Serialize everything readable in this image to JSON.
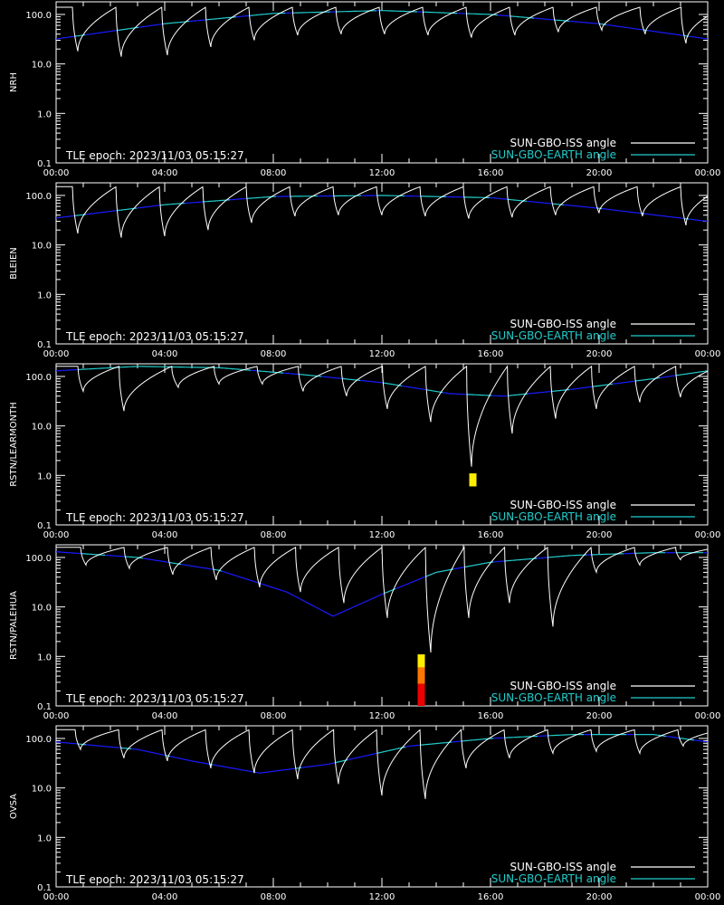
{
  "colors": {
    "background": "#000000",
    "axes": "#ffffff",
    "iss": "#ffffff",
    "earth_above": "#22cccc",
    "earth_below": "#1a1aff",
    "marker_yellow": "#ffee00",
    "marker_orange": "#ff7700",
    "marker_red": "#ee0000"
  },
  "x_tick_labels": [
    "00:00",
    "04:00",
    "08:00",
    "12:00",
    "16:00",
    "20:00",
    "00:00"
  ],
  "y_tick_labels": [
    "100.0",
    "10.0",
    "1.0",
    "0.1"
  ],
  "epoch_text": "TLE epoch: 2023/11/03 05:15:27",
  "legend": [
    {
      "label": "SUN-GBO-ISS angle",
      "color": "#ffffff"
    },
    {
      "label": "SUN-GBO-EARTH angle",
      "color": "#22cccc"
    }
  ],
  "chart_data": [
    {
      "type": "line",
      "ylabel": "NRH",
      "xlim": [
        0,
        24
      ],
      "ylim": [
        0.1,
        180
      ],
      "yscale": "log",
      "earth_curve": {
        "x": [
          0,
          4,
          8,
          12,
          16,
          20,
          24
        ],
        "y": [
          32,
          65,
          105,
          120,
          100,
          65,
          32
        ]
      },
      "iss_minima": [
        {
          "x": 0.8,
          "y": 18
        },
        {
          "x": 2.4,
          "y": 14
        },
        {
          "x": 4.1,
          "y": 15
        },
        {
          "x": 5.7,
          "y": 22
        },
        {
          "x": 7.3,
          "y": 30
        },
        {
          "x": 8.9,
          "y": 38
        },
        {
          "x": 10.5,
          "y": 40
        },
        {
          "x": 12.1,
          "y": 40
        },
        {
          "x": 13.7,
          "y": 38
        },
        {
          "x": 15.3,
          "y": 34
        },
        {
          "x": 16.9,
          "y": 38
        },
        {
          "x": 18.5,
          "y": 44
        },
        {
          "x": 20.1,
          "y": 48
        },
        {
          "x": 21.7,
          "y": 40
        },
        {
          "x": 23.2,
          "y": 26
        }
      ],
      "iss_peak": 140,
      "markers": []
    },
    {
      "type": "line",
      "ylabel": "BLEIEN",
      "xlim": [
        0,
        24
      ],
      "ylim": [
        0.1,
        180
      ],
      "yscale": "log",
      "earth_curve": {
        "x": [
          0,
          4,
          8,
          12,
          16,
          20,
          24
        ],
        "y": [
          35,
          65,
          95,
          100,
          90,
          55,
          30
        ]
      },
      "iss_minima": [
        {
          "x": 0.8,
          "y": 17
        },
        {
          "x": 2.4,
          "y": 14
        },
        {
          "x": 4.0,
          "y": 15
        },
        {
          "x": 5.6,
          "y": 20
        },
        {
          "x": 7.2,
          "y": 28
        },
        {
          "x": 8.8,
          "y": 38
        },
        {
          "x": 10.4,
          "y": 40
        },
        {
          "x": 12.0,
          "y": 40
        },
        {
          "x": 13.6,
          "y": 38
        },
        {
          "x": 15.2,
          "y": 34
        },
        {
          "x": 16.8,
          "y": 36
        },
        {
          "x": 18.4,
          "y": 40
        },
        {
          "x": 20.0,
          "y": 44
        },
        {
          "x": 21.6,
          "y": 38
        },
        {
          "x": 23.2,
          "y": 25
        }
      ],
      "iss_peak": 150,
      "markers": []
    },
    {
      "type": "line",
      "ylabel": "RSTN/LEARMONTH",
      "xlim": [
        0,
        24
      ],
      "ylim": [
        0.1,
        180
      ],
      "yscale": "log",
      "earth_curve": {
        "x": [
          0,
          3,
          6,
          9,
          12,
          14.5,
          16.5,
          19,
          22,
          24
        ],
        "y": [
          130,
          160,
          150,
          110,
          75,
          45,
          40,
          55,
          90,
          130
        ]
      },
      "iss_minima": [
        {
          "x": 1.0,
          "y": 50
        },
        {
          "x": 2.5,
          "y": 20
        },
        {
          "x": 4.5,
          "y": 60
        },
        {
          "x": 6.0,
          "y": 70
        },
        {
          "x": 7.6,
          "y": 70
        },
        {
          "x": 9.1,
          "y": 50
        },
        {
          "x": 10.7,
          "y": 40
        },
        {
          "x": 12.2,
          "y": 22
        },
        {
          "x": 13.8,
          "y": 12
        },
        {
          "x": 15.3,
          "y": 1.5
        },
        {
          "x": 16.8,
          "y": 7
        },
        {
          "x": 18.4,
          "y": 14
        },
        {
          "x": 19.9,
          "y": 22
        },
        {
          "x": 21.5,
          "y": 30
        },
        {
          "x": 23.0,
          "y": 38
        }
      ],
      "iss_peak": 160,
      "markers": [
        {
          "x": 15.35,
          "y_from": 0.6,
          "y_to": 1.1,
          "color": "#ffee00"
        }
      ]
    },
    {
      "type": "line",
      "ylabel": "RSTN/PALEHUA",
      "xlim": [
        0,
        24
      ],
      "ylim": [
        0.1,
        180
      ],
      "yscale": "log",
      "earth_curve": {
        "x": [
          0,
          3,
          6,
          8.5,
          10.2,
          12,
          14,
          16,
          19,
          22,
          24
        ],
        "y": [
          130,
          100,
          55,
          20,
          6.5,
          18,
          50,
          80,
          110,
          125,
          125
        ]
      },
      "iss_minima": [
        {
          "x": 1.1,
          "y": 70
        },
        {
          "x": 2.7,
          "y": 60
        },
        {
          "x": 4.3,
          "y": 45
        },
        {
          "x": 5.9,
          "y": 35
        },
        {
          "x": 7.5,
          "y": 25
        },
        {
          "x": 9.0,
          "y": 20
        },
        {
          "x": 10.6,
          "y": 12
        },
        {
          "x": 12.2,
          "y": 6
        },
        {
          "x": 13.8,
          "y": 1.2
        },
        {
          "x": 15.2,
          "y": 6
        },
        {
          "x": 16.7,
          "y": 12
        },
        {
          "x": 18.3,
          "y": 4
        },
        {
          "x": 19.9,
          "y": 50
        },
        {
          "x": 21.5,
          "y": 70
        },
        {
          "x": 23.0,
          "y": 90
        }
      ],
      "iss_peak": 160,
      "markers": [
        {
          "x": 13.45,
          "y_from": 0.6,
          "y_to": 1.1,
          "color": "#ffee00"
        },
        {
          "x": 13.45,
          "y_from": 0.28,
          "y_to": 0.6,
          "color": "#ff7700"
        },
        {
          "x": 13.45,
          "y_from": 0.1,
          "y_to": 0.28,
          "color": "#ee0000"
        }
      ]
    },
    {
      "type": "line",
      "ylabel": "OVSA",
      "xlim": [
        0,
        24
      ],
      "ylim": [
        0.1,
        180
      ],
      "yscale": "log",
      "earth_curve": {
        "x": [
          0,
          3,
          5,
          7.5,
          10,
          13,
          16,
          19,
          22,
          24
        ],
        "y": [
          85,
          60,
          35,
          20,
          30,
          70,
          100,
          120,
          120,
          85
        ]
      },
      "iss_minima": [
        {
          "x": 0.9,
          "y": 60
        },
        {
          "x": 2.5,
          "y": 40
        },
        {
          "x": 4.1,
          "y": 35
        },
        {
          "x": 5.7,
          "y": 25
        },
        {
          "x": 7.3,
          "y": 20
        },
        {
          "x": 8.9,
          "y": 15
        },
        {
          "x": 10.4,
          "y": 12
        },
        {
          "x": 12.0,
          "y": 7
        },
        {
          "x": 13.6,
          "y": 6
        },
        {
          "x": 15.1,
          "y": 25
        },
        {
          "x": 16.7,
          "y": 40
        },
        {
          "x": 18.3,
          "y": 50
        },
        {
          "x": 19.9,
          "y": 55
        },
        {
          "x": 21.5,
          "y": 50
        },
        {
          "x": 23.1,
          "y": 70
        }
      ],
      "iss_peak": 150,
      "markers": []
    }
  ]
}
